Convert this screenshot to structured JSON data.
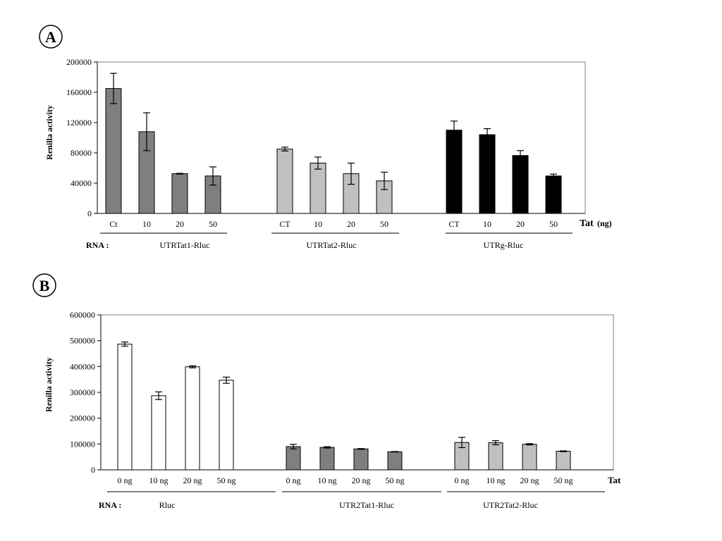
{
  "chart_data": [
    {
      "type": "bar",
      "panel_label": "A",
      "ylabel": "Renilla activity",
      "xlabel": "Tat",
      "xlabel_unit": "(ng)",
      "rna_label": "RNA :",
      "ylim": [
        0,
        200000
      ],
      "yticks": [
        "0",
        "40000",
        "80000",
        "120000",
        "160000",
        "200000"
      ],
      "tick_values": [
        0,
        40000,
        80000,
        120000,
        160000,
        200000
      ],
      "grid": false,
      "groups": [
        {
          "name": "UTRTat1-Rluc",
          "color": "#7f7f7f",
          "categories": [
            "Ct",
            "10",
            "20",
            "50"
          ],
          "values": [
            165000,
            108000,
            52500,
            49500
          ],
          "errors": [
            20000,
            25000,
            500,
            12000
          ]
        },
        {
          "name": "UTRTat2-Rluc",
          "color": "#c0c0c0",
          "categories": [
            "CT",
            "10",
            "20",
            "50"
          ],
          "values": [
            85000,
            66500,
            52500,
            43000
          ],
          "errors": [
            2500,
            8000,
            14000,
            11500
          ]
        },
        {
          "name": "UTRg-Rluc",
          "color": "#000000",
          "categories": [
            "CT",
            "10",
            "20",
            "50"
          ],
          "values": [
            110000,
            104000,
            76500,
            49500
          ],
          "errors": [
            12000,
            8000,
            6500,
            2500
          ]
        }
      ]
    },
    {
      "type": "bar",
      "panel_label": "B",
      "ylabel": "Renilla activity",
      "xlabel": "Tat",
      "rna_label": "RNA :",
      "ylim": [
        0,
        600000
      ],
      "yticks": [
        "0",
        "100000",
        "200000",
        "300000",
        "400000",
        "500000",
        "600000"
      ],
      "tick_values": [
        0,
        100000,
        200000,
        300000,
        400000,
        500000,
        600000
      ],
      "grid": false,
      "groups": [
        {
          "name": "Rluc",
          "color": "#ffffff",
          "categories": [
            "0 ng",
            "10 ng",
            "20 ng",
            "50 ng"
          ],
          "values": [
            487000,
            287000,
            399000,
            347000
          ],
          "errors": [
            8000,
            15000,
            4000,
            12000
          ]
        },
        {
          "name": "UTR2Tat1-Rluc",
          "color": "#7f7f7f",
          "categories": [
            "0 ng",
            "10 ng",
            "20 ng",
            "50 ng"
          ],
          "values": [
            90000,
            87000,
            81000,
            70000
          ],
          "errors": [
            9000,
            2500,
            1500,
            1000
          ]
        },
        {
          "name": "UTR2Tat2-Rluc",
          "color": "#c0c0c0",
          "categories": [
            "0 ng",
            "10 ng",
            "20 ng",
            "50 ng"
          ],
          "values": [
            106000,
            105000,
            99000,
            72000
          ],
          "errors": [
            20000,
            8000,
            2500,
            1500
          ]
        }
      ]
    }
  ]
}
